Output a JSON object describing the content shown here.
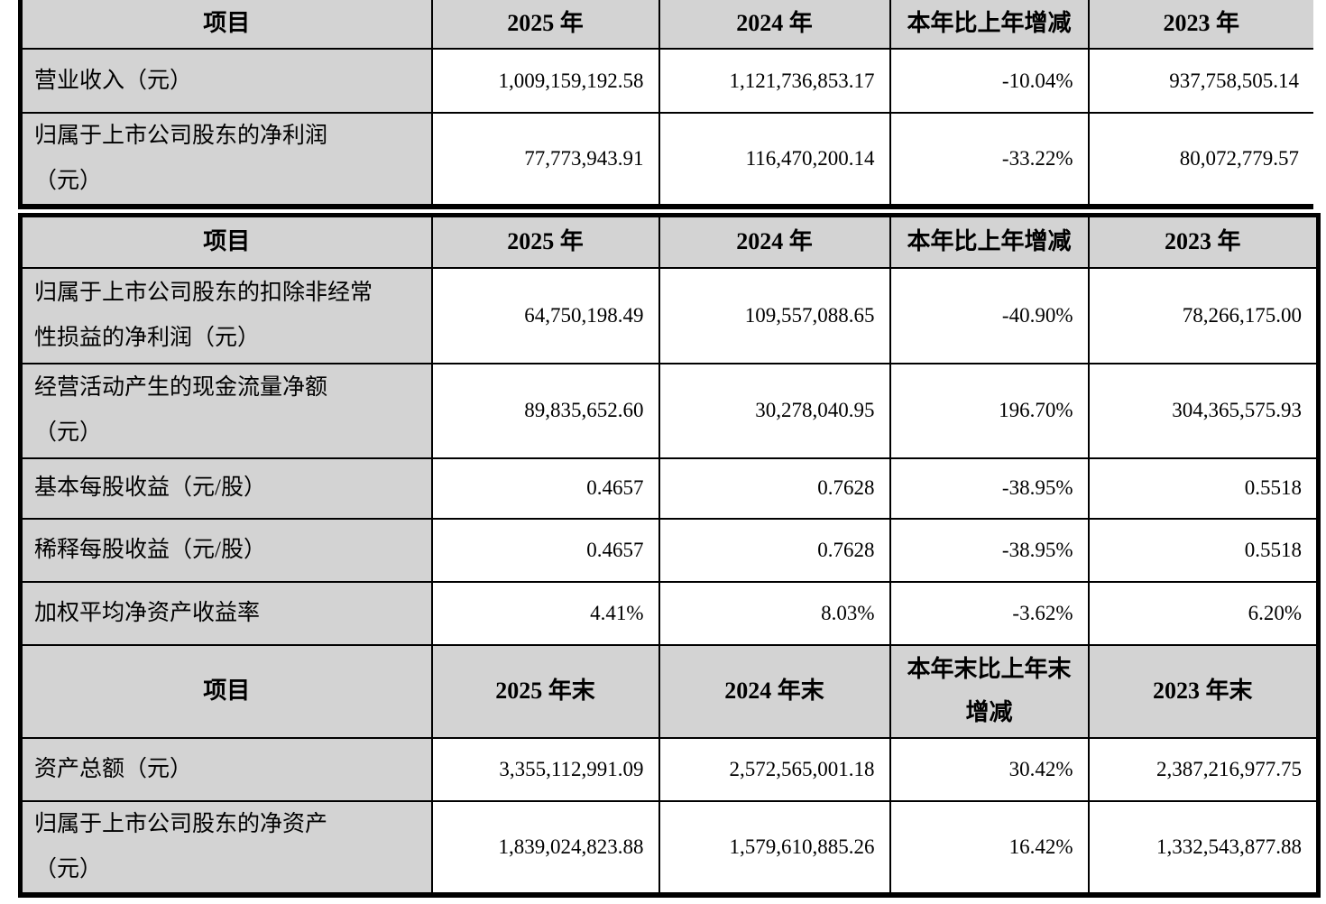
{
  "colors": {
    "header_bg": "#d3d3d3",
    "label_column_bg": "#d3d3d3",
    "border": "#000000",
    "value_cell_bg": "#ffffff"
  },
  "table1": {
    "headers": [
      "项目",
      "2025 年",
      "2024 年",
      "本年比上年增减",
      "2023 年"
    ],
    "rows": [
      {
        "label": "营业收入（元）",
        "y2025": "1,009,159,192.58",
        "y2024": "1,121,736,853.17",
        "change": "-10.04%",
        "y2023": "937,758,505.14"
      },
      {
        "label": "归属于上市公司股东的净利润\n（元）",
        "y2025": "77,773,943.91",
        "y2024": "116,470,200.14",
        "change": "-33.22%",
        "y2023": "80,072,779.57"
      }
    ]
  },
  "table2": {
    "headers": [
      "项目",
      "2025 年",
      "2024 年",
      "本年比上年增减",
      "2023 年"
    ],
    "rows": [
      {
        "label": "归属于上市公司股东的扣除非经常\n性损益的净利润（元）",
        "y2025": "64,750,198.49",
        "y2024": "109,557,088.65",
        "change": "-40.90%",
        "y2023": "78,266,175.00"
      },
      {
        "label": "经营活动产生的现金流量净额\n（元）",
        "y2025": "89,835,652.60",
        "y2024": "30,278,040.95",
        "change": "196.70%",
        "y2023": "304,365,575.93"
      },
      {
        "label": "基本每股收益（元/股）",
        "y2025": "0.4657",
        "y2024": "0.7628",
        "change": "-38.95%",
        "y2023": "0.5518"
      },
      {
        "label": "稀释每股收益（元/股）",
        "y2025": "0.4657",
        "y2024": "0.7628",
        "change": "-38.95%",
        "y2023": "0.5518"
      },
      {
        "label": "加权平均净资产收益率",
        "y2025": "4.41%",
        "y2024": "8.03%",
        "change": "-3.62%",
        "y2023": "6.20%"
      }
    ],
    "headers_eoy": [
      "项目",
      "2025 年末",
      "2024 年末",
      "本年末比上年末\n增减",
      "2023 年末"
    ],
    "rows_eoy": [
      {
        "label": "资产总额（元）",
        "y2025": "3,355,112,991.09",
        "y2024": "2,572,565,001.18",
        "change": "30.42%",
        "y2023": "2,387,216,977.75"
      },
      {
        "label": "归属于上市公司股东的净资产\n（元）",
        "y2025": "1,839,024,823.88",
        "y2024": "1,579,610,885.26",
        "change": "16.42%",
        "y2023": "1,332,543,877.88"
      }
    ]
  }
}
